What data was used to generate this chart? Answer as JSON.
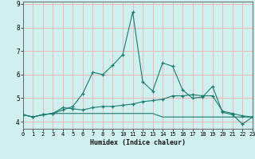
{
  "x": [
    0,
    1,
    2,
    3,
    4,
    5,
    6,
    7,
    8,
    9,
    10,
    11,
    12,
    13,
    14,
    15,
    16,
    17,
    18,
    19,
    20,
    21,
    22,
    23
  ],
  "line1": [
    4.3,
    4.2,
    4.3,
    4.35,
    4.5,
    4.65,
    5.2,
    6.1,
    6.0,
    6.4,
    6.85,
    8.65,
    5.7,
    5.3,
    6.5,
    6.35,
    5.35,
    5.0,
    5.05,
    5.5,
    4.4,
    4.3,
    3.9,
    4.2
  ],
  "line2": [
    4.3,
    4.2,
    4.3,
    4.35,
    4.6,
    4.55,
    4.5,
    4.6,
    4.65,
    4.65,
    4.7,
    4.75,
    4.85,
    4.9,
    4.95,
    5.1,
    5.1,
    5.15,
    5.1,
    5.1,
    4.45,
    4.35,
    4.25,
    4.2
  ],
  "line3": [
    4.3,
    4.2,
    4.3,
    4.35,
    4.35,
    4.35,
    4.35,
    4.35,
    4.35,
    4.35,
    4.35,
    4.35,
    4.35,
    4.35,
    4.2,
    4.2,
    4.2,
    4.2,
    4.2,
    4.2,
    4.2,
    4.2,
    4.2,
    4.2
  ],
  "line_color": "#1a7a6e",
  "bg_color": "#cff0ee",
  "grid_color": "#e8b8b8",
  "xlabel": "Humidex (Indice chaleur)",
  "ylim": [
    3.7,
    9.1
  ],
  "xlim": [
    0,
    23
  ],
  "xticks": [
    0,
    1,
    2,
    3,
    4,
    5,
    6,
    7,
    8,
    9,
    10,
    11,
    12,
    13,
    14,
    15,
    16,
    17,
    18,
    19,
    20,
    21,
    22,
    23
  ],
  "yticks": [
    4,
    5,
    6,
    7,
    8,
    9
  ]
}
